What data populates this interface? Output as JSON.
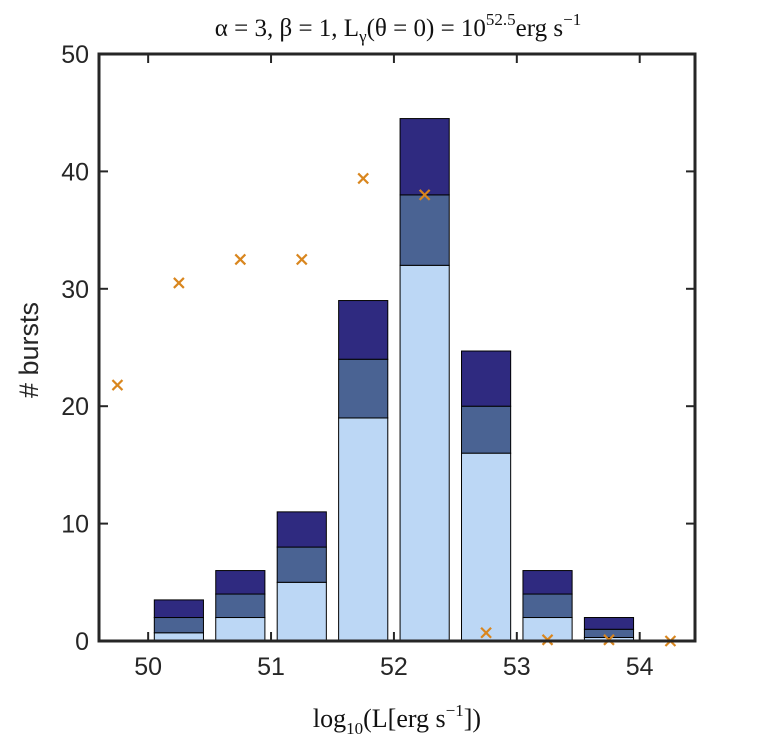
{
  "chart_data": {
    "type": "bar",
    "stacked": true,
    "title": "α = 3, β = 1, L_γ(θ = 0) = 10^52.5 erg s^-1",
    "title_parts": {
      "prefix": "α = 3, β = 1, L",
      "sub": "γ",
      "mid": "(θ = 0) = 10",
      "sup": "52.5",
      "unit": "erg s",
      "unit_sup": "−1"
    },
    "xlabel": "log10(L[erg s^-1])",
    "xlabel_parts": {
      "fn": "log",
      "sub": "10",
      "arg": "(L[erg s",
      "sup": "−1",
      "end": "])"
    },
    "ylabel": "# bursts",
    "xlim": [
      49.6,
      54.45
    ],
    "ylim": [
      0,
      50
    ],
    "xticks": [
      50,
      51,
      52,
      53,
      54
    ],
    "yticks": [
      0,
      10,
      20,
      30,
      40,
      50
    ],
    "xtick_labels": [
      "50",
      "51",
      "52",
      "53",
      "54"
    ],
    "ytick_labels": [
      "0",
      "10",
      "20",
      "30",
      "40",
      "50"
    ],
    "categories": [
      50.25,
      50.75,
      51.25,
      51.75,
      52.25,
      52.75,
      53.25,
      53.75
    ],
    "bar_width": 0.4,
    "series": [
      {
        "name": "light",
        "color": "#bcd7f5",
        "values": [
          0.7,
          2.0,
          5.0,
          19.0,
          32.0,
          16.0,
          2.0,
          0.3
        ]
      },
      {
        "name": "medium",
        "color": "#4a6393",
        "values": [
          1.3,
          2.0,
          3.0,
          5.0,
          6.0,
          4.0,
          2.0,
          0.7
        ]
      },
      {
        "name": "dark",
        "color": "#2f2a80",
        "values": [
          1.5,
          2.0,
          3.0,
          5.0,
          6.5,
          4.7,
          2.0,
          1.0
        ]
      }
    ],
    "markers": {
      "name": "crosses",
      "color": "#d9861e",
      "x": [
        49.75,
        50.25,
        50.75,
        51.25,
        51.75,
        52.25,
        52.75,
        53.25,
        53.75,
        54.25
      ],
      "y": [
        21.8,
        30.5,
        32.5,
        32.5,
        39.4,
        38.0,
        0.7,
        0.1,
        0.1,
        0.0
      ]
    }
  }
}
